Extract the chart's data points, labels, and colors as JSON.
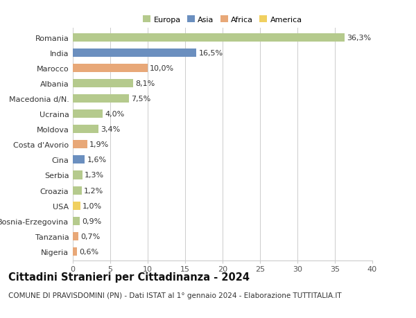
{
  "categories": [
    "Romania",
    "India",
    "Marocco",
    "Albania",
    "Macedonia d/N.",
    "Ucraina",
    "Moldova",
    "Costa d'Avorio",
    "Cina",
    "Serbia",
    "Croazia",
    "USA",
    "Bosnia-Erzegovina",
    "Tanzania",
    "Nigeria"
  ],
  "values": [
    36.3,
    16.5,
    10.0,
    8.1,
    7.5,
    4.0,
    3.4,
    1.9,
    1.6,
    1.3,
    1.2,
    1.0,
    0.9,
    0.7,
    0.6
  ],
  "labels": [
    "36,3%",
    "16,5%",
    "10,0%",
    "8,1%",
    "7,5%",
    "4,0%",
    "3,4%",
    "1,9%",
    "1,6%",
    "1,3%",
    "1,2%",
    "1,0%",
    "0,9%",
    "0,7%",
    "0,6%"
  ],
  "continents": [
    "Europa",
    "Asia",
    "Africa",
    "Europa",
    "Europa",
    "Europa",
    "Europa",
    "Africa",
    "Asia",
    "Europa",
    "Europa",
    "America",
    "Europa",
    "Africa",
    "Africa"
  ],
  "colors": {
    "Europa": "#b5ca8d",
    "Asia": "#6b8fbf",
    "Africa": "#e8a878",
    "America": "#f0d060"
  },
  "xlim": [
    0,
    40
  ],
  "xticks": [
    0,
    5,
    10,
    15,
    20,
    25,
    30,
    35,
    40
  ],
  "title": "Cittadini Stranieri per Cittadinanza - 2024",
  "subtitle": "COMUNE DI PRAVISDOMINI (PN) - Dati ISTAT al 1° gennaio 2024 - Elaborazione TUTTITALIA.IT",
  "background_color": "#ffffff",
  "grid_color": "#cccccc",
  "bar_height": 0.55,
  "label_fontsize": 8,
  "tick_fontsize": 8,
  "title_fontsize": 10.5,
  "subtitle_fontsize": 7.5,
  "legend_entries": [
    "Europa",
    "Asia",
    "Africa",
    "America"
  ]
}
